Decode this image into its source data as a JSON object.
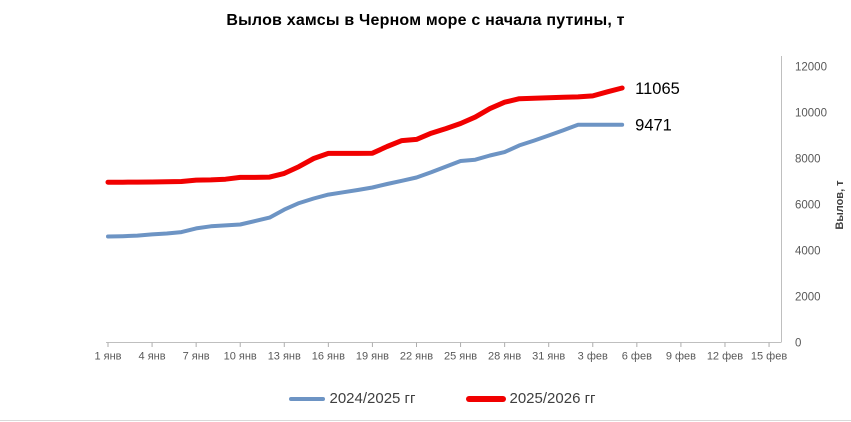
{
  "chart_data": {
    "type": "line",
    "title": "Вылов хамсы в Черном море с начала путины, т",
    "ylabel": "Вылов, т",
    "ylim": [
      0,
      12000
    ],
    "y_ticks": [
      0,
      2000,
      4000,
      6000,
      8000,
      10000,
      12000
    ],
    "x_tick_labels": [
      "1 янв",
      "4 янв",
      "7 янв",
      "10 янв",
      "13 янв",
      "16 янв",
      "19 янв",
      "22 янв",
      "25 янв",
      "28 янв",
      "31 янв",
      "3 фев",
      "6 фев",
      "9 фев",
      "12 фев",
      "15 фев"
    ],
    "x_tick_step_days": 3,
    "x_axis_days_total": 46,
    "grid": false,
    "legend_position": "bottom",
    "series": [
      {
        "name": "2024/2025 гг",
        "color": "#6D94C4",
        "line_width": 4,
        "end_label": "9471",
        "final_value": 9471,
        "values": [
          4610,
          4620,
          4650,
          4700,
          4740,
          4800,
          4960,
          5050,
          5090,
          5130,
          5280,
          5430,
          5780,
          6060,
          6260,
          6430,
          6530,
          6630,
          6740,
          6890,
          7030,
          7175,
          7400,
          7650,
          7890,
          7950,
          8130,
          8280,
          8570,
          8780,
          9000,
          9230,
          9471,
          9471,
          9471,
          9471
        ]
      },
      {
        "name": "2025/2026 гг",
        "color": "#F10000",
        "line_width": 5,
        "end_label": "11065",
        "final_value": 11065,
        "values": [
          6970,
          6970,
          6975,
          6980,
          6990,
          7000,
          7060,
          7070,
          7100,
          7180,
          7180,
          7190,
          7350,
          7650,
          8000,
          8220,
          8220,
          8220,
          8230,
          8520,
          8780,
          8830,
          9100,
          9300,
          9520,
          9800,
          10170,
          10450,
          10600,
          10620,
          10640,
          10660,
          10680,
          10720,
          10900,
          11065
        ]
      }
    ]
  },
  "colors": {
    "axis_line": "#BFBFBF",
    "tick_mark": "#ADADAD",
    "tick_label": "#595959",
    "title_text": "#000000",
    "legend_text": "#3F3F3F",
    "data_label": "#000000",
    "background": "#FFFFFF"
  }
}
